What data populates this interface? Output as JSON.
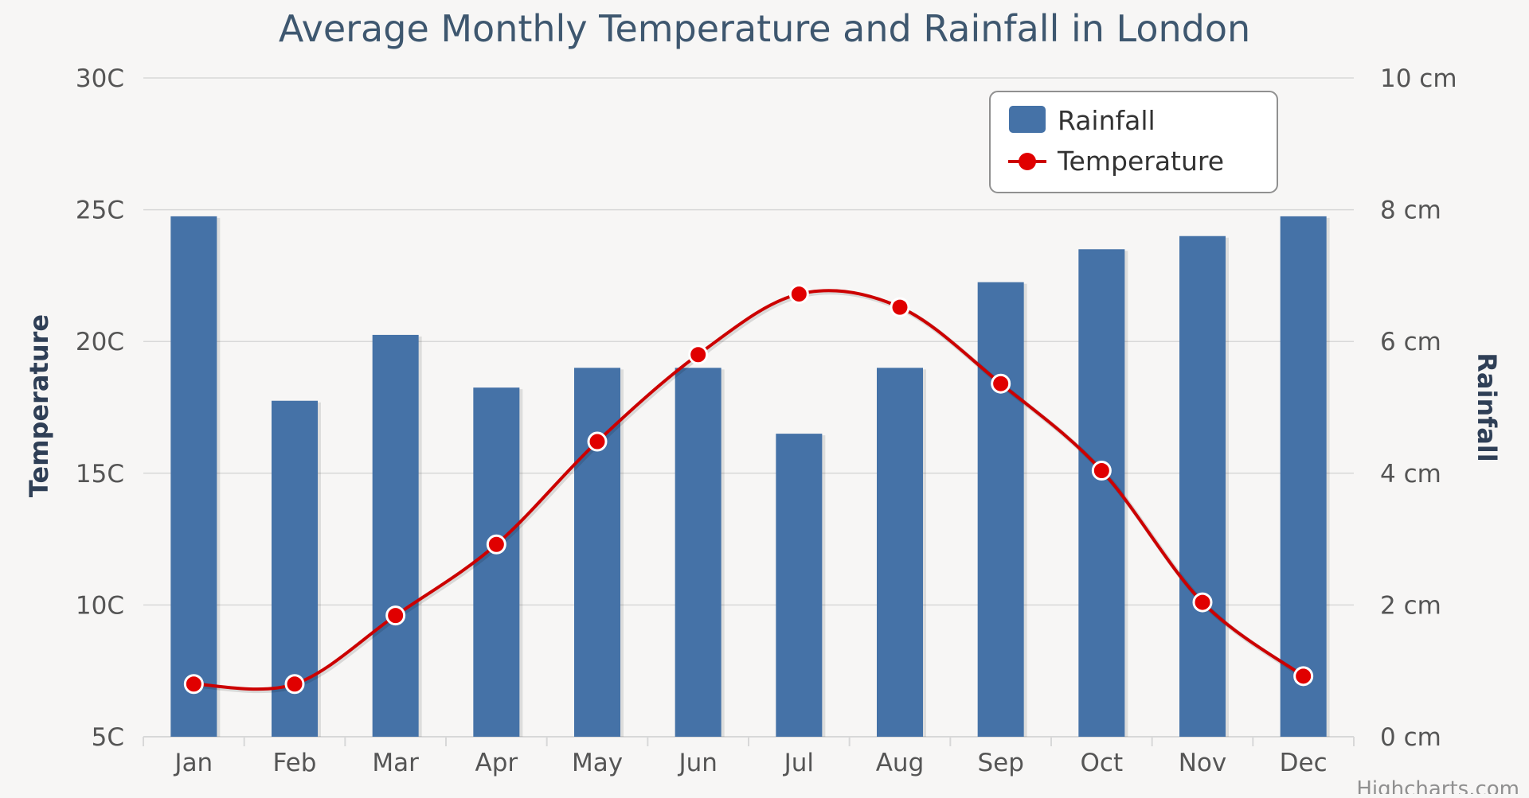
{
  "chart_data": {
    "type": "bar+line",
    "title": "Average Monthly Temperature and Rainfall in London",
    "categories": [
      "Jan",
      "Feb",
      "Mar",
      "Apr",
      "May",
      "Jun",
      "Jul",
      "Aug",
      "Sep",
      "Oct",
      "Nov",
      "Dec"
    ],
    "series": [
      {
        "name": "Rainfall",
        "type": "column",
        "axis": "right",
        "unit": "cm",
        "color": "#4572a7",
        "values": [
          7.9,
          5.1,
          6.1,
          5.3,
          5.6,
          5.6,
          4.6,
          5.6,
          6.9,
          7.4,
          7.6,
          7.9
        ]
      },
      {
        "name": "Temperature",
        "type": "spline",
        "axis": "left",
        "unit": "C",
        "color": "#cc0000",
        "marker_color": "#e00000",
        "values": [
          7.0,
          7.0,
          9.6,
          12.3,
          16.2,
          19.5,
          21.8,
          21.3,
          18.4,
          15.1,
          10.1,
          7.3
        ]
      }
    ],
    "y_left": {
      "label": "Temperature",
      "range": [
        5,
        30
      ],
      "ticks": [
        5,
        10,
        15,
        20,
        25,
        30
      ],
      "tick_labels": [
        "5C",
        "10C",
        "15C",
        "20C",
        "25C",
        "30C"
      ]
    },
    "y_right": {
      "label": "Rainfall",
      "range": [
        0,
        10
      ],
      "ticks": [
        0,
        2,
        4,
        6,
        8,
        10
      ],
      "tick_labels": [
        "0 cm",
        "2 cm",
        "4 cm",
        "6 cm",
        "8 cm",
        "10 cm"
      ]
    },
    "grid": true,
    "legend_position": "top-right",
    "credit": "Highcharts.com"
  },
  "colors": {
    "background": "#f7f6f5",
    "grid": "#d8d8d8",
    "title": "#3e576f",
    "tick_label": "#555555",
    "axis_title": "#2f3f56",
    "legend_border": "#909090"
  }
}
